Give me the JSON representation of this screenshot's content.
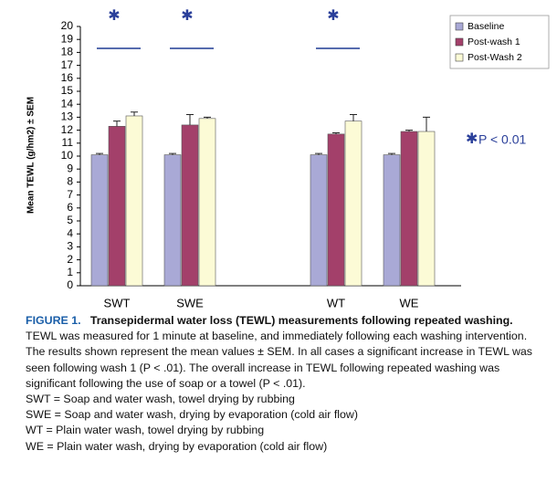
{
  "chart_data": {
    "type": "bar",
    "y_label": "Mean TEWL (g/hm2) ± SEM",
    "categories": [
      "SWT",
      "SWE",
      null,
      "WT",
      "WE"
    ],
    "series": [
      {
        "name": "Baseline",
        "color": "#a9a9d6",
        "values": [
          10.1,
          10.1,
          null,
          10.1,
          10.1
        ],
        "errors": [
          0.1,
          0.1,
          null,
          0.1,
          0.1
        ]
      },
      {
        "name": "Post-wash 1",
        "color": "#a3406a",
        "values": [
          12.3,
          12.4,
          null,
          11.7,
          11.9
        ],
        "errors": [
          0.4,
          0.8,
          null,
          0.1,
          0.1
        ]
      },
      {
        "name": "Post-Wash 2",
        "color": "#fcfbd6",
        "values": [
          13.1,
          12.9,
          null,
          12.7,
          11.9
        ],
        "errors": [
          0.3,
          0.1,
          null,
          0.5,
          1.1
        ]
      }
    ],
    "significant": [
      true,
      true,
      null,
      true,
      false
    ],
    "significance_symbol": "✱",
    "significance_label": "P < 0.01",
    "ylim": [
      0,
      20
    ],
    "yticks": [
      0,
      1,
      2,
      3,
      4,
      5,
      6,
      7,
      8,
      9,
      10,
      11,
      12,
      13,
      14,
      15,
      16,
      17,
      18,
      19,
      20
    ],
    "legend": "top-right"
  },
  "caption": {
    "label": "FIGURE 1.",
    "title": "Transepidermal water loss (TEWL) measurements following repeated washing.",
    "text": "TEWL was measured for 1 minute at baseline, and immediately following each washing intervention. The results shown represent the mean values ± SEM. In all cases a significant increase in TEWL was seen following wash 1 (P < .01). The overall increase in TEWL following repeated washing was significant following the use of soap or a towel (P < .01).",
    "definitions": [
      "SWT = Soap and water wash, towel drying by rubbing",
      "SWE = Soap and water wash, drying by evaporation (cold air flow)",
      "WT = Plain water wash, towel drying by rubbing",
      "WE = Plain water wash, drying by evaporation (cold air flow)"
    ]
  }
}
